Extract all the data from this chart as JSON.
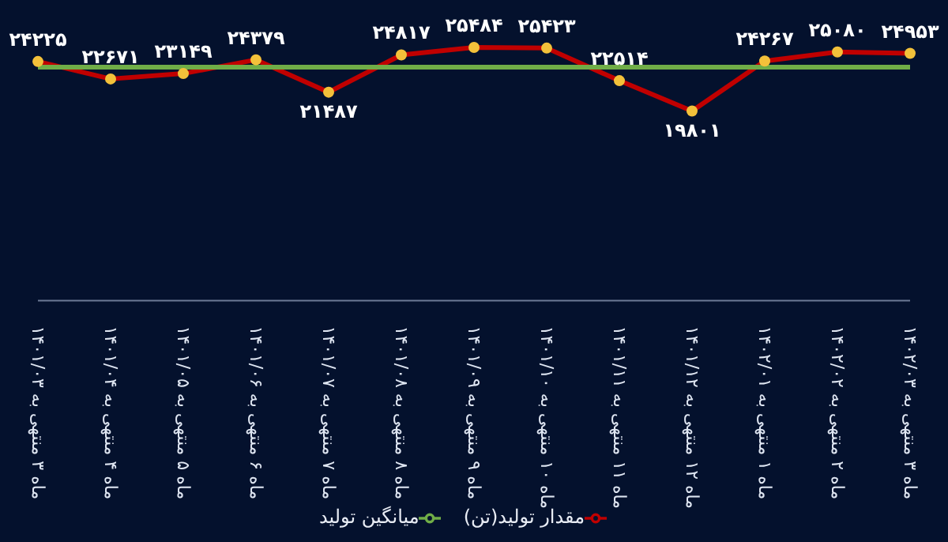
{
  "chart_data": {
    "type": "line",
    "categories": [
      "ماه ۳ منتهی به ۱۴۰۱/۰۳",
      "ماه ۴ منتهی به ۱۴۰۱/۰۴",
      "ماه ۵ منتهی به ۱۴۰۱/۰۵",
      "ماه ۶ منتهی به ۱۴۰۱/۰۶",
      "ماه ۷ منتهی به ۱۴۰۱/۰۷",
      "ماه ۸ منتهی به ۱۴۰۱/۰۸",
      "ماه ۹ منتهی به ۱۴۰۱/۰۹",
      "ماه ۱۰ منتهی به ۱۴۰۱/۱۰",
      "ماه ۱۱ منتهی به ۱۴۰۱/۱۱",
      "ماه ۱۲ منتهی به ۱۴۰۱/۱۲",
      "ماه ۱ منتهی به ۱۴۰۲/۰۱",
      "ماه ۲ منتهی به ۱۴۰۲/۰۲",
      "ماه ۳ منتهی به ۱۴۰۲/۰۳"
    ],
    "series": [
      {
        "name": "مقدار تولید(تن)",
        "color": "#c00000",
        "marker": "circle",
        "values": [
          24225,
          22671,
          23149,
          24379,
          21487,
          24817,
          25484,
          25423,
          22514,
          19801,
          24267,
          25080,
          24953
        ],
        "value_labels": [
          "۲۴۲۲۵",
          "۲۲۶۷۱",
          "۲۳۱۴۹",
          "۲۴۳۷۹",
          "۲۱۴۸۷",
          "۲۴۸۱۷",
          "۲۵۴۸۴",
          "۲۵۴۲۳",
          "۲۲۵۱۴",
          "۱۹۸۰۱",
          "۲۴۲۶۷",
          "۲۵۰۸۰",
          "۲۴۹۵۳"
        ]
      },
      {
        "name": "میانگین تولید",
        "color": "#70ad47",
        "marker": "none",
        "values": [
          23712,
          23712,
          23712,
          23712,
          23712,
          23712,
          23712,
          23712,
          23712,
          23712,
          23712,
          23712,
          23712
        ]
      }
    ],
    "legend": "bottom"
  }
}
